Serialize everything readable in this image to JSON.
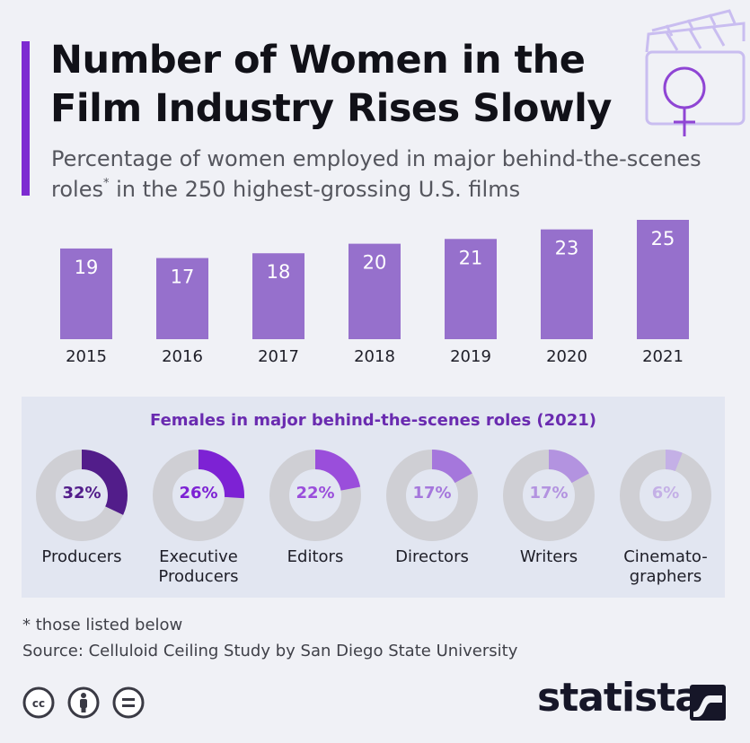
{
  "header": {
    "title": "Number of Women in the Film Industry Rises Slowly",
    "subtitle_pre": "Percentage of women employed in major behind-the-scenes roles",
    "subtitle_sup": "*",
    "subtitle_post": " in the 250 highest-grossing U.S. films"
  },
  "chart_data": [
    {
      "type": "bar",
      "categories": [
        "2015",
        "2016",
        "2017",
        "2018",
        "2019",
        "2020",
        "2021"
      ],
      "values": [
        19,
        17,
        18,
        20,
        21,
        23,
        25
      ],
      "title": "",
      "xlabel": "",
      "ylabel": "",
      "ylim": [
        0,
        25
      ],
      "grid": false,
      "color": "#9670cc"
    },
    {
      "type": "pie",
      "title": "Females in major behind-the-scenes roles (2021)",
      "categories": [
        "Producers",
        "Executive Producers",
        "Editors",
        "Directors",
        "Writers",
        "Cinematographers"
      ],
      "labels": [
        "Producers",
        "Executive\nProducers",
        "Editors",
        "Directors",
        "Writers",
        "Cinemato-\ngraphers"
      ],
      "values": [
        32,
        26,
        22,
        17,
        17,
        6
      ],
      "value_labels": [
        "32%",
        "26%",
        "22%",
        "17%",
        "17%",
        "6%"
      ],
      "colors": [
        "#521d8a",
        "#7d22d4",
        "#9a4edb",
        "#a577dc",
        "#b393e0",
        "#c4b0e6"
      ],
      "track_color": "#cfcfd4"
    }
  ],
  "footer": {
    "footnote": "* those listed below",
    "source": "Source: Celluloid Ceiling Study by San Diego State University",
    "brand": "statista",
    "license_icons": [
      "cc-icon",
      "attribution-icon",
      "no-derivatives-icon"
    ]
  }
}
